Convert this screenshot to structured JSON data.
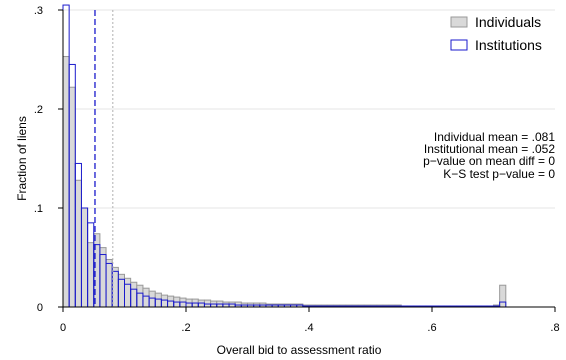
{
  "chart_data": {
    "type": "bar",
    "title": "",
    "xlabel": "Overall bid to assessment ratio",
    "ylabel": "Fraction of liens",
    "xlim": [
      0,
      0.8
    ],
    "ylim": [
      0,
      0.3
    ],
    "x_ticks": [
      {
        "value": 0,
        "label": "0"
      },
      {
        "value": 0.2,
        "label": ".2"
      },
      {
        "value": 0.4,
        "label": ".4"
      },
      {
        "value": 0.6,
        "label": ".6"
      },
      {
        "value": 0.8,
        "label": ".8"
      }
    ],
    "y_ticks": [
      {
        "value": 0,
        "label": "0"
      },
      {
        "value": 0.1,
        "label": ".1"
      },
      {
        "value": 0.2,
        "label": ".2"
      },
      {
        "value": 0.3,
        "label": ".3"
      }
    ],
    "bin_width": 0.01,
    "x": [
      0.005,
      0.015,
      0.025,
      0.035,
      0.045,
      0.055,
      0.065,
      0.075,
      0.085,
      0.095,
      0.105,
      0.115,
      0.125,
      0.135,
      0.145,
      0.155,
      0.165,
      0.175,
      0.185,
      0.195,
      0.205,
      0.215,
      0.225,
      0.235,
      0.245,
      0.255,
      0.265,
      0.275,
      0.285,
      0.295,
      0.305,
      0.315,
      0.325,
      0.335,
      0.345,
      0.355,
      0.365,
      0.375,
      0.385,
      0.395,
      0.405,
      0.415,
      0.425,
      0.435,
      0.445,
      0.455,
      0.465,
      0.475,
      0.485,
      0.495,
      0.505,
      0.515,
      0.525,
      0.535,
      0.545,
      0.555,
      0.565,
      0.575,
      0.585,
      0.595,
      0.605,
      0.615,
      0.625,
      0.635,
      0.645,
      0.655,
      0.665,
      0.675,
      0.685,
      0.695,
      0.705,
      0.715
    ],
    "series": [
      {
        "name": "Individuals",
        "color": "#d9d9d9",
        "stroke": "#999999",
        "values": [
          0.253,
          0.222,
          0.128,
          0.1,
          0.065,
          0.074,
          0.06,
          0.048,
          0.04,
          0.033,
          0.029,
          0.025,
          0.022,
          0.019,
          0.016,
          0.014,
          0.012,
          0.011,
          0.01,
          0.009,
          0.008,
          0.008,
          0.007,
          0.007,
          0.006,
          0.006,
          0.005,
          0.005,
          0.005,
          0.004,
          0.004,
          0.004,
          0.004,
          0.003,
          0.003,
          0.003,
          0.003,
          0.003,
          0.003,
          0.002,
          0.002,
          0.002,
          0.002,
          0.002,
          0.002,
          0.002,
          0.002,
          0.002,
          0.002,
          0.002,
          0.002,
          0.002,
          0.002,
          0.002,
          0.002,
          0.001,
          0.001,
          0.001,
          0.001,
          0.001,
          0.001,
          0.001,
          0.001,
          0.001,
          0.001,
          0.001,
          0.001,
          0.001,
          0.001,
          0.001,
          0.002,
          0.022
        ]
      },
      {
        "name": "Institutions",
        "color": "#ffffff",
        "stroke": "#1a1acc",
        "values": [
          0.305,
          0.245,
          0.145,
          0.1,
          0.085,
          0.063,
          0.053,
          0.044,
          0.036,
          0.028,
          0.023,
          0.018,
          0.014,
          0.011,
          0.009,
          0.008,
          0.007,
          0.006,
          0.005,
          0.005,
          0.004,
          0.004,
          0.004,
          0.003,
          0.003,
          0.003,
          0.003,
          0.003,
          0.002,
          0.002,
          0.002,
          0.002,
          0.002,
          0.002,
          0.002,
          0.002,
          0.002,
          0.002,
          0.002,
          0.001,
          0.001,
          0.001,
          0.001,
          0.001,
          0.001,
          0.001,
          0.001,
          0.001,
          0.001,
          0.001,
          0.001,
          0.001,
          0.001,
          0.001,
          0.001,
          0.001,
          0.001,
          0.001,
          0.001,
          0.001,
          0.001,
          0.001,
          0.001,
          0.001,
          0.001,
          0.001,
          0.001,
          0.001,
          0.001,
          0.001,
          0.001,
          0.005
        ]
      }
    ],
    "reference_lines": [
      {
        "name": "institutional-mean-line",
        "x": 0.052,
        "style": "dashed",
        "color": "#1a1acc"
      },
      {
        "name": "individual-mean-line",
        "x": 0.081,
        "style": "dotted",
        "color": "#b0b0b0"
      }
    ],
    "legend": {
      "position": "top-right",
      "entries": [
        "Individuals",
        "Institutions"
      ]
    },
    "annotations": [
      "Individual mean = .081",
      "Institutional mean = .052",
      "p−value on mean diff = 0",
      "K−S test p−value = 0"
    ]
  }
}
